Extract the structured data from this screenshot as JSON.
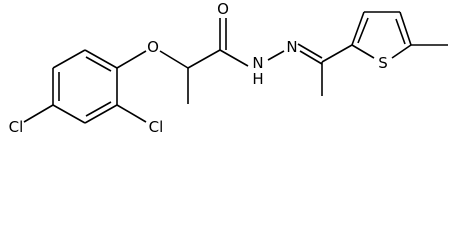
{
  "atoms": [
    {
      "label": "Cl"
    },
    {
      "label": "Cl"
    },
    {
      "label": "O"
    },
    {
      "label": "O"
    },
    {
      "label": "N"
    },
    {
      "label": "H"
    },
    {
      "label": "N"
    },
    {
      "label": "S"
    }
  ]
}
